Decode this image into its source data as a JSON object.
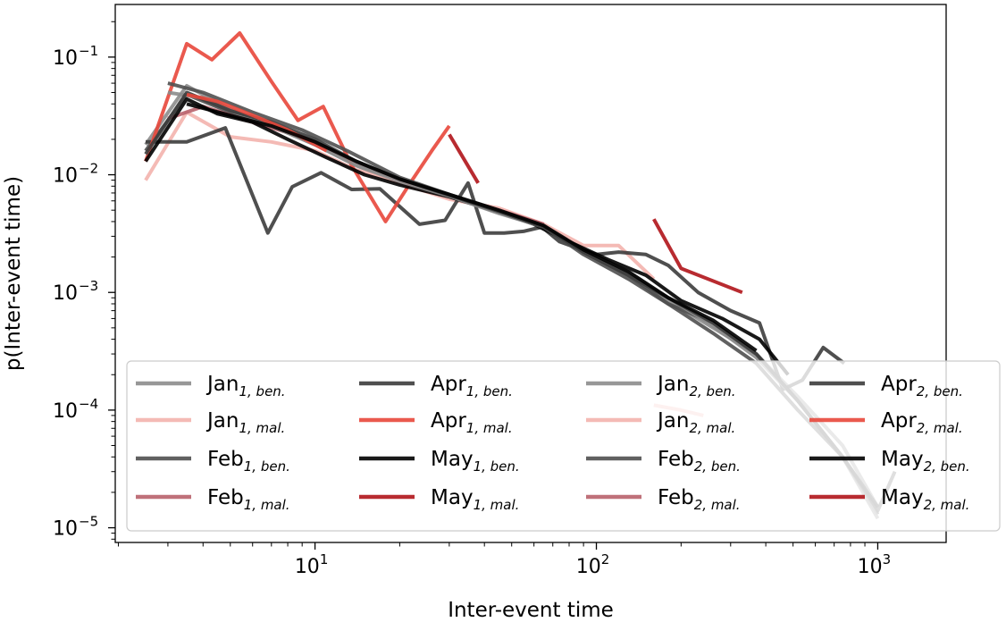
{
  "chart_data": {
    "type": "line",
    "xlabel": "Inter-event time",
    "ylabel": "p(Inter-event time)",
    "xscale": "log",
    "yscale": "log",
    "xlim": [
      1.95,
      1750
    ],
    "ylim": [
      7.5e-06,
      0.28
    ],
    "x_ticks": [
      {
        "base": "10",
        "exp": "1",
        "value": 10
      },
      {
        "base": "10",
        "exp": "2",
        "value": 100
      },
      {
        "base": "10",
        "exp": "3",
        "value": 1000
      }
    ],
    "y_ticks": [
      {
        "base": "10",
        "exp": "−1",
        "value": 0.1
      },
      {
        "base": "10",
        "exp": "−2",
        "value": 0.01
      },
      {
        "base": "10",
        "exp": "−3",
        "value": 0.001
      },
      {
        "base": "10",
        "exp": "−4",
        "value": 0.0001
      },
      {
        "base": "10",
        "exp": "−5",
        "value": 1e-05
      }
    ],
    "grid": false,
    "legend": {
      "position": "lower-center",
      "columns": 4
    },
    "series": [
      {
        "name": "Jan",
        "sub": "1, ben.",
        "color": "#8c8c8c",
        "x": [
          2.5,
          3.5,
          5,
          7,
          10,
          14,
          20,
          30,
          45,
          65,
          90,
          130,
          180,
          260,
          370,
          520,
          750,
          1000
        ],
        "y": [
          0.018,
          0.057,
          0.036,
          0.026,
          0.018,
          0.012,
          0.0085,
          0.0065,
          0.0048,
          0.0036,
          0.0022,
          0.0015,
          0.00085,
          0.0005,
          0.0003,
          0.00013,
          5e-05,
          1.5e-05
        ]
      },
      {
        "name": "Jan",
        "sub": "1, mal.",
        "color": "#f3b3ad",
        "x": [
          2.5,
          3.5,
          5,
          7,
          10,
          14,
          20,
          30,
          45,
          65,
          90,
          120,
          160
        ],
        "y": [
          0.009,
          0.034,
          0.021,
          0.019,
          0.016,
          0.011,
          0.0085,
          0.0062,
          0.0052,
          0.0038,
          0.0025,
          0.0025,
          0.0013
        ]
      },
      {
        "name": "Feb",
        "sub": "1, ben.",
        "color": "#505050",
        "x": [
          2.5,
          3.5,
          5,
          7,
          10,
          14,
          20,
          30,
          45,
          65,
          90,
          130,
          180,
          260,
          370,
          520,
          750,
          1000
        ],
        "y": [
          0.016,
          0.048,
          0.034,
          0.027,
          0.019,
          0.013,
          0.009,
          0.0068,
          0.005,
          0.0037,
          0.0022,
          0.0014,
          0.0008,
          0.00055,
          0.0003,
          0.00012,
          4e-05,
          1.3e-05
        ]
      },
      {
        "name": "Feb",
        "sub": "1, mal.",
        "color": "#b8626b",
        "x": [
          3,
          4,
          6,
          9,
          13,
          20,
          30,
          45,
          65
        ],
        "y": [
          0.03,
          0.038,
          0.028,
          0.021,
          0.014,
          0.009,
          0.0066,
          0.005,
          0.0038
        ]
      },
      {
        "name": "Apr",
        "sub": "1, ben.",
        "color": "#3c3c3c",
        "x": [
          2.5,
          3.5,
          4.8,
          6.8,
          8.3,
          10.5,
          13.5,
          17,
          23.5,
          29,
          35,
          40,
          47,
          55,
          64,
          74,
          85,
          100,
          120,
          150,
          180,
          230,
          300,
          380,
          460,
          540,
          640,
          760
        ],
        "y": [
          0.019,
          0.019,
          0.025,
          0.0032,
          0.0079,
          0.0104,
          0.0075,
          0.0076,
          0.0038,
          0.0041,
          0.0085,
          0.0032,
          0.0032,
          0.0033,
          0.0036,
          0.0027,
          0.0024,
          0.0021,
          0.0022,
          0.0021,
          0.0017,
          0.001,
          0.0007,
          0.00055,
          0.00015,
          0.00018,
          0.00034,
          0.00025
        ]
      },
      {
        "name": "Apr",
        "sub": "1, mal.",
        "color": "#e8473b",
        "x": [
          2.5,
          3.5,
          4.3,
          5.4,
          7,
          8.7,
          10.7,
          13.5,
          17.8,
          22,
          26,
          30
        ],
        "y": [
          0.013,
          0.13,
          0.095,
          0.16,
          0.062,
          0.029,
          0.038,
          0.012,
          0.004,
          0.0088,
          0.016,
          0.026
        ]
      },
      {
        "name": "May",
        "sub": "1, ben.",
        "color": "#000000",
        "x": [
          2.5,
          3.5,
          4.5,
          6,
          8,
          11,
          15,
          20,
          30,
          45,
          60,
          80,
          110,
          150,
          200,
          280,
          380,
          480
        ],
        "y": [
          0.013,
          0.044,
          0.033,
          0.028,
          0.02,
          0.014,
          0.01,
          0.0082,
          0.0065,
          0.0048,
          0.0038,
          0.0027,
          0.0019,
          0.0014,
          0.00085,
          0.0006,
          0.0004,
          0.0002
        ]
      },
      {
        "name": "May",
        "sub": "1, mal.",
        "color": "#b0141a",
        "x": [
          30,
          38
        ],
        "y": [
          0.022,
          0.0085
        ]
      },
      {
        "name": "Jan",
        "sub": "2, ben.",
        "color": "#8c8c8c",
        "x": [
          3,
          4,
          5,
          7,
          10,
          14,
          20,
          30,
          45,
          65,
          90,
          130,
          180,
          260,
          370,
          520,
          750,
          1000
        ],
        "y": [
          0.05,
          0.045,
          0.035,
          0.026,
          0.018,
          0.012,
          0.0088,
          0.0066,
          0.0047,
          0.0036,
          0.0022,
          0.0015,
          0.0009,
          0.00052,
          0.00028,
          0.00012,
          4e-05,
          1.2e-05
        ]
      },
      {
        "name": "Jan",
        "sub": "2, mal.",
        "color": "#f3b3ad",
        "x": [
          160,
          200,
          240
        ],
        "y": [
          0.00011,
          0.0001,
          9e-05
        ]
      },
      {
        "name": "Feb",
        "sub": "2, ben.",
        "color": "#505050",
        "x": [
          3,
          4,
          6,
          9,
          13,
          20,
          30,
          45,
          65,
          90,
          130,
          180,
          260,
          370,
          520,
          750,
          1000,
          1150
        ],
        "y": [
          0.06,
          0.05,
          0.034,
          0.024,
          0.016,
          0.0095,
          0.0068,
          0.0049,
          0.0036,
          0.0021,
          0.0013,
          0.0008,
          0.00045,
          0.00025,
          0.0001,
          4e-05,
          1.4e-05,
          3e-05
        ]
      },
      {
        "name": "Feb",
        "sub": "2, mal.",
        "color": "#b8626b",
        "x": [],
        "y": []
      },
      {
        "name": "Apr",
        "sub": "2, ben.",
        "color": "#3c3c3c",
        "x": [
          2.5,
          3.5,
          5,
          7,
          10,
          14,
          20,
          30,
          45,
          65,
          90,
          130,
          180,
          260,
          370,
          520,
          750,
          1000
        ],
        "y": [
          0.015,
          0.05,
          0.035,
          0.028,
          0.02,
          0.013,
          0.0092,
          0.0067,
          0.0049,
          0.0036,
          0.0022,
          0.0014,
          0.0009,
          0.00055,
          0.0003,
          0.00012,
          4e-05,
          1.5e-05
        ]
      },
      {
        "name": "Apr",
        "sub": "2, mal.",
        "color": "#e8473b",
        "x": [
          3.5,
          4.5,
          6,
          8,
          11
        ],
        "y": [
          0.048,
          0.042,
          0.032,
          0.024,
          0.016
        ]
      },
      {
        "name": "May",
        "sub": "2, ben.",
        "color": "#000000",
        "x": [
          3.5,
          5,
          7,
          10,
          14,
          20,
          30,
          45,
          65,
          90,
          130,
          180,
          260,
          370
        ],
        "y": [
          0.04,
          0.032,
          0.026,
          0.019,
          0.013,
          0.0092,
          0.0068,
          0.005,
          0.0037,
          0.0023,
          0.0015,
          0.0009,
          0.00058,
          0.00032
        ]
      },
      {
        "name": "May",
        "sub": "2, mal.",
        "color": "#b0141a",
        "x": [
          160,
          200,
          330
        ],
        "y": [
          0.0042,
          0.0016,
          0.001
        ]
      }
    ]
  }
}
